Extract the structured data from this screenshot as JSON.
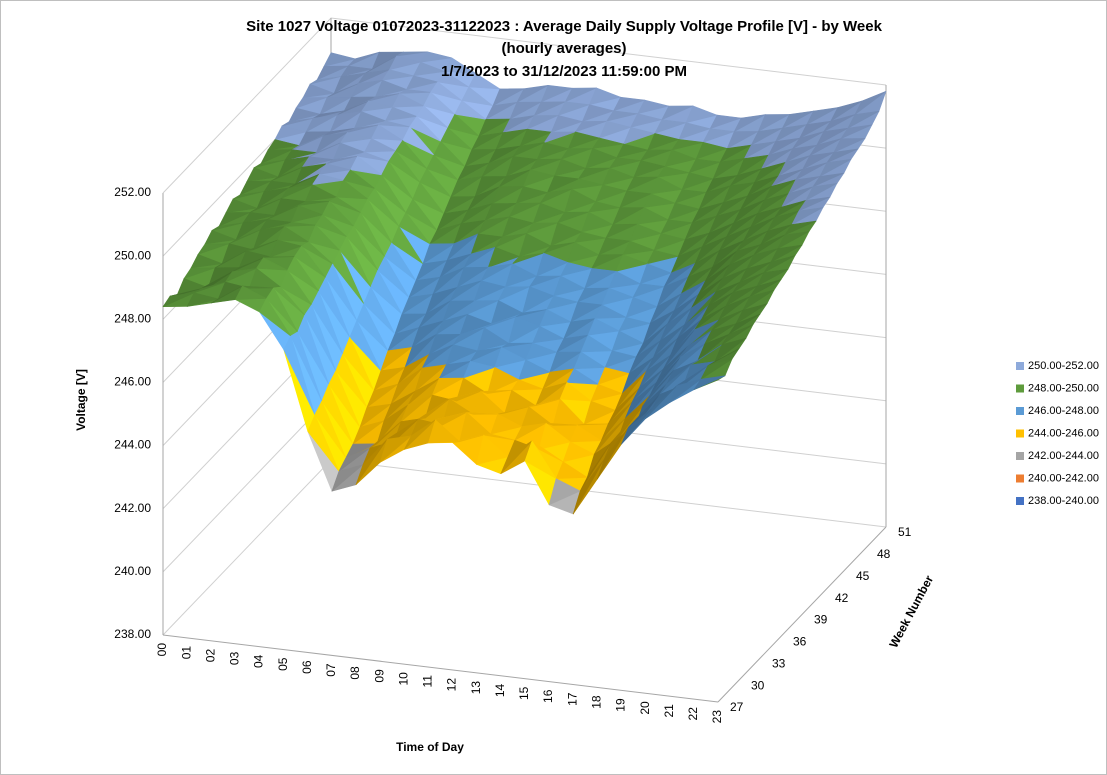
{
  "chart_data": {
    "type": "surface",
    "title": [
      "Site 1027 Voltage 01072023-31122023 : Average Daily Supply Voltage Profile [V] - by Week",
      "(hourly averages)",
      "1/7/2023 to 31/12/2023 11:59:00 PM"
    ],
    "x_label": "Time of Day",
    "y_label": "Week Number",
    "z_label": "Voltage [V]",
    "categories": [
      "00",
      "01",
      "02",
      "03",
      "04",
      "05",
      "06",
      "07",
      "08",
      "09",
      "10",
      "11",
      "12",
      "13",
      "14",
      "15",
      "16",
      "17",
      "18",
      "19",
      "20",
      "21",
      "22",
      "23"
    ],
    "depth_categories": [
      "27",
      null,
      null,
      "30",
      null,
      null,
      "33",
      null,
      null,
      "36",
      null,
      null,
      "39",
      null,
      null,
      "42",
      null,
      null,
      "45",
      null,
      null,
      "48",
      null,
      null,
      "51"
    ],
    "zlim": [
      238,
      252
    ],
    "zticks": [
      {
        "value": 238,
        "label": "238.00"
      },
      {
        "value": 240,
        "label": "240.00"
      },
      {
        "value": 242,
        "label": "242.00"
      },
      {
        "value": 244,
        "label": "244.00"
      },
      {
        "value": 246,
        "label": "246.00"
      },
      {
        "value": 248,
        "label": "248.00"
      },
      {
        "value": 250,
        "label": "250.00"
      },
      {
        "value": 252,
        "label": "252.00"
      }
    ],
    "legend": [
      {
        "name": "250.00-252.00",
        "color": "#8eaadb"
      },
      {
        "name": "248.00-250.00",
        "color": "#5e9b3c"
      },
      {
        "name": "246.00-248.00",
        "color": "#5b9bd5"
      },
      {
        "name": "244.00-246.00",
        "color": "#ffc000"
      },
      {
        "name": "242.00-244.00",
        "color": "#a5a5a5"
      },
      {
        "name": "240.00-242.00",
        "color": "#ed7d31"
      },
      {
        "name": "238.00-240.00",
        "color": "#4472c4"
      }
    ],
    "z": [
      [
        248.4,
        248.5,
        248.7,
        248.9,
        248.6,
        247.5,
        245.0,
        243.2,
        243.5,
        244.3,
        244.8,
        245.1,
        245.2,
        244.6,
        244.4,
        244.9,
        243.6,
        243.4,
        244.6,
        245.8,
        246.7,
        247.3,
        247.8,
        248.2
      ],
      [
        248.5,
        248.7,
        248.6,
        249.1,
        248.8,
        247.7,
        245.3,
        243.6,
        243.9,
        244.8,
        245.0,
        245.6,
        245.0,
        245.3,
        244.7,
        245.3,
        244.2,
        243.9,
        245.0,
        246.1,
        246.8,
        247.6,
        247.9,
        248.1
      ],
      [
        248.3,
        248.6,
        248.9,
        248.8,
        248.9,
        247.6,
        245.5,
        243.8,
        244.2,
        244.5,
        245.3,
        245.2,
        245.7,
        245.1,
        245.0,
        244.8,
        244.5,
        244.1,
        245.3,
        245.9,
        247.0,
        247.4,
        248.1,
        248.4
      ],
      [
        248.6,
        248.4,
        249.0,
        249.2,
        248.7,
        247.9,
        245.8,
        244.0,
        244.1,
        244.9,
        245.1,
        245.8,
        245.4,
        245.5,
        245.2,
        245.4,
        244.9,
        244.6,
        245.2,
        246.3,
        247.1,
        247.8,
        248.0,
        248.5
      ],
      [
        248.7,
        248.8,
        248.9,
        249.3,
        249.0,
        248.0,
        246.0,
        244.3,
        244.6,
        245.2,
        245.6,
        245.5,
        245.9,
        245.3,
        245.6,
        245.1,
        245.2,
        244.8,
        245.6,
        246.4,
        247.3,
        247.7,
        248.3,
        248.6
      ],
      [
        248.9,
        248.7,
        249.2,
        249.1,
        249.2,
        248.2,
        246.3,
        244.7,
        244.9,
        245.4,
        245.9,
        246.0,
        245.6,
        245.8,
        245.4,
        245.7,
        245.0,
        245.1,
        245.9,
        246.6,
        247.5,
        248.0,
        248.4,
        248.8
      ],
      [
        249.0,
        249.1,
        249.0,
        249.4,
        249.3,
        248.4,
        246.6,
        245.0,
        245.3,
        245.9,
        246.1,
        246.3,
        246.2,
        245.9,
        245.7,
        246.0,
        245.5,
        245.3,
        246.1,
        246.8,
        247.6,
        248.2,
        248.5,
        248.9
      ],
      [
        249.2,
        249.0,
        249.4,
        249.6,
        249.2,
        248.6,
        246.9,
        245.4,
        245.6,
        246.1,
        246.5,
        246.4,
        246.6,
        246.3,
        246.0,
        246.2,
        245.8,
        245.6,
        246.4,
        247.0,
        247.9,
        248.3,
        248.7,
        249.0
      ],
      [
        249.1,
        249.3,
        249.5,
        249.5,
        249.5,
        248.8,
        247.2,
        245.8,
        246.0,
        246.5,
        246.6,
        246.9,
        246.5,
        246.6,
        246.4,
        246.5,
        246.1,
        246.0,
        246.6,
        247.3,
        248.0,
        248.5,
        248.9,
        249.2
      ],
      [
        249.3,
        249.4,
        249.4,
        249.8,
        249.6,
        249.0,
        247.5,
        246.1,
        246.4,
        246.7,
        247.0,
        246.8,
        247.1,
        246.9,
        246.6,
        246.8,
        246.4,
        246.3,
        246.9,
        247.5,
        248.2,
        248.7,
        249.0,
        249.3
      ],
      [
        249.5,
        249.3,
        249.7,
        249.7,
        249.8,
        249.1,
        247.8,
        246.5,
        246.6,
        247.1,
        247.2,
        247.3,
        247.0,
        247.2,
        246.9,
        247.1,
        246.8,
        246.5,
        247.2,
        247.8,
        248.4,
        248.8,
        249.2,
        249.4
      ],
      [
        249.4,
        249.6,
        249.8,
        250.0,
        249.7,
        249.3,
        248.0,
        246.8,
        247.0,
        247.3,
        247.6,
        247.5,
        247.6,
        247.4,
        247.3,
        247.3,
        247.0,
        246.9,
        247.4,
        248.0,
        248.6,
        249.0,
        249.3,
        249.6
      ],
      [
        249.6,
        249.7,
        249.7,
        250.1,
        250.0,
        249.5,
        248.2,
        247.1,
        247.3,
        247.7,
        247.8,
        248.0,
        247.7,
        247.8,
        247.5,
        247.6,
        247.4,
        247.2,
        247.7,
        248.2,
        248.8,
        249.2,
        249.5,
        249.7
      ],
      [
        249.8,
        249.6,
        250.0,
        250.2,
        250.1,
        249.6,
        248.5,
        247.4,
        247.6,
        247.9,
        248.2,
        248.0,
        248.2,
        248.0,
        247.9,
        247.9,
        247.6,
        247.6,
        248.0,
        248.4,
        249.0,
        249.3,
        249.7,
        249.9
      ],
      [
        249.7,
        249.9,
        250.1,
        250.1,
        250.3,
        249.8,
        248.7,
        247.8,
        247.9,
        248.3,
        248.3,
        248.5,
        248.2,
        248.4,
        248.1,
        248.2,
        248.0,
        247.8,
        248.2,
        248.7,
        249.1,
        249.5,
        249.8,
        250.0
      ],
      [
        249.9,
        250.0,
        250.0,
        250.4,
        250.2,
        250.0,
        248.9,
        248.0,
        248.3,
        248.5,
        248.7,
        248.6,
        248.7,
        248.5,
        248.4,
        248.4,
        248.2,
        248.1,
        248.5,
        248.9,
        249.3,
        249.7,
        250.0,
        250.2
      ],
      [
        250.0,
        249.9,
        250.3,
        250.5,
        250.4,
        250.1,
        249.2,
        248.3,
        248.5,
        248.8,
        248.9,
        249.0,
        248.8,
        248.9,
        248.6,
        248.7,
        248.5,
        248.4,
        248.7,
        249.1,
        249.5,
        249.8,
        250.1,
        250.3
      ],
      [
        250.2,
        250.1,
        250.2,
        250.4,
        250.6,
        250.2,
        249.4,
        248.6,
        248.7,
        249.1,
        249.2,
        249.1,
        249.3,
        249.0,
        248.9,
        249.0,
        248.7,
        248.7,
        249.0,
        249.3,
        249.7,
        250.0,
        250.3,
        250.5
      ],
      [
        250.1,
        250.3,
        250.5,
        250.7,
        250.5,
        250.4,
        249.6,
        248.9,
        249.1,
        249.2,
        249.5,
        249.4,
        249.4,
        249.3,
        249.2,
        249.2,
        249.0,
        248.9,
        249.2,
        249.5,
        249.9,
        250.2,
        250.4,
        250.6
      ],
      [
        250.3,
        250.2,
        250.4,
        250.8,
        250.7,
        250.5,
        249.8,
        249.1,
        249.3,
        249.6,
        249.6,
        249.7,
        249.5,
        249.6,
        249.4,
        249.5,
        249.2,
        249.2,
        249.5,
        249.7,
        250.0,
        250.3,
        250.6,
        250.8
      ],
      [
        250.4,
        250.5,
        250.6,
        250.7,
        250.9,
        250.6,
        250.0,
        249.4,
        249.5,
        249.7,
        249.9,
        249.8,
        249.9,
        249.7,
        249.7,
        249.6,
        249.5,
        249.4,
        249.6,
        249.9,
        250.2,
        250.5,
        250.7,
        250.9
      ],
      [
        250.6,
        250.4,
        250.8,
        251.0,
        250.8,
        250.8,
        250.2,
        249.6,
        249.8,
        250.0,
        250.0,
        250.1,
        250.0,
        249.9,
        249.8,
        249.9,
        249.7,
        249.7,
        249.9,
        250.1,
        250.4,
        250.6,
        250.9,
        251.0
      ],
      [
        250.5,
        250.7,
        250.9,
        251.1,
        251.0,
        250.9,
        250.4,
        249.9,
        250.0,
        250.2,
        250.3,
        250.2,
        250.3,
        250.2,
        250.1,
        250.0,
        250.0,
        249.9,
        250.1,
        250.3,
        250.5,
        250.8,
        251.0,
        251.2
      ],
      [
        250.7,
        250.8,
        250.8,
        251.3,
        251.2,
        251.0,
        250.6,
        250.1,
        250.3,
        250.4,
        250.5,
        250.5,
        250.4,
        250.4,
        250.3,
        250.3,
        250.2,
        250.2,
        250.3,
        250.5,
        250.7,
        250.9,
        251.2,
        251.4
      ],
      [
        250.9,
        250.8,
        251.1,
        251.2,
        251.3,
        251.2,
        250.8,
        250.4,
        250.5,
        250.7,
        250.7,
        250.8,
        250.6,
        250.6,
        250.5,
        250.6,
        250.4,
        250.4,
        250.6,
        250.7,
        250.9,
        251.1,
        251.4,
        251.8
      ]
    ]
  }
}
